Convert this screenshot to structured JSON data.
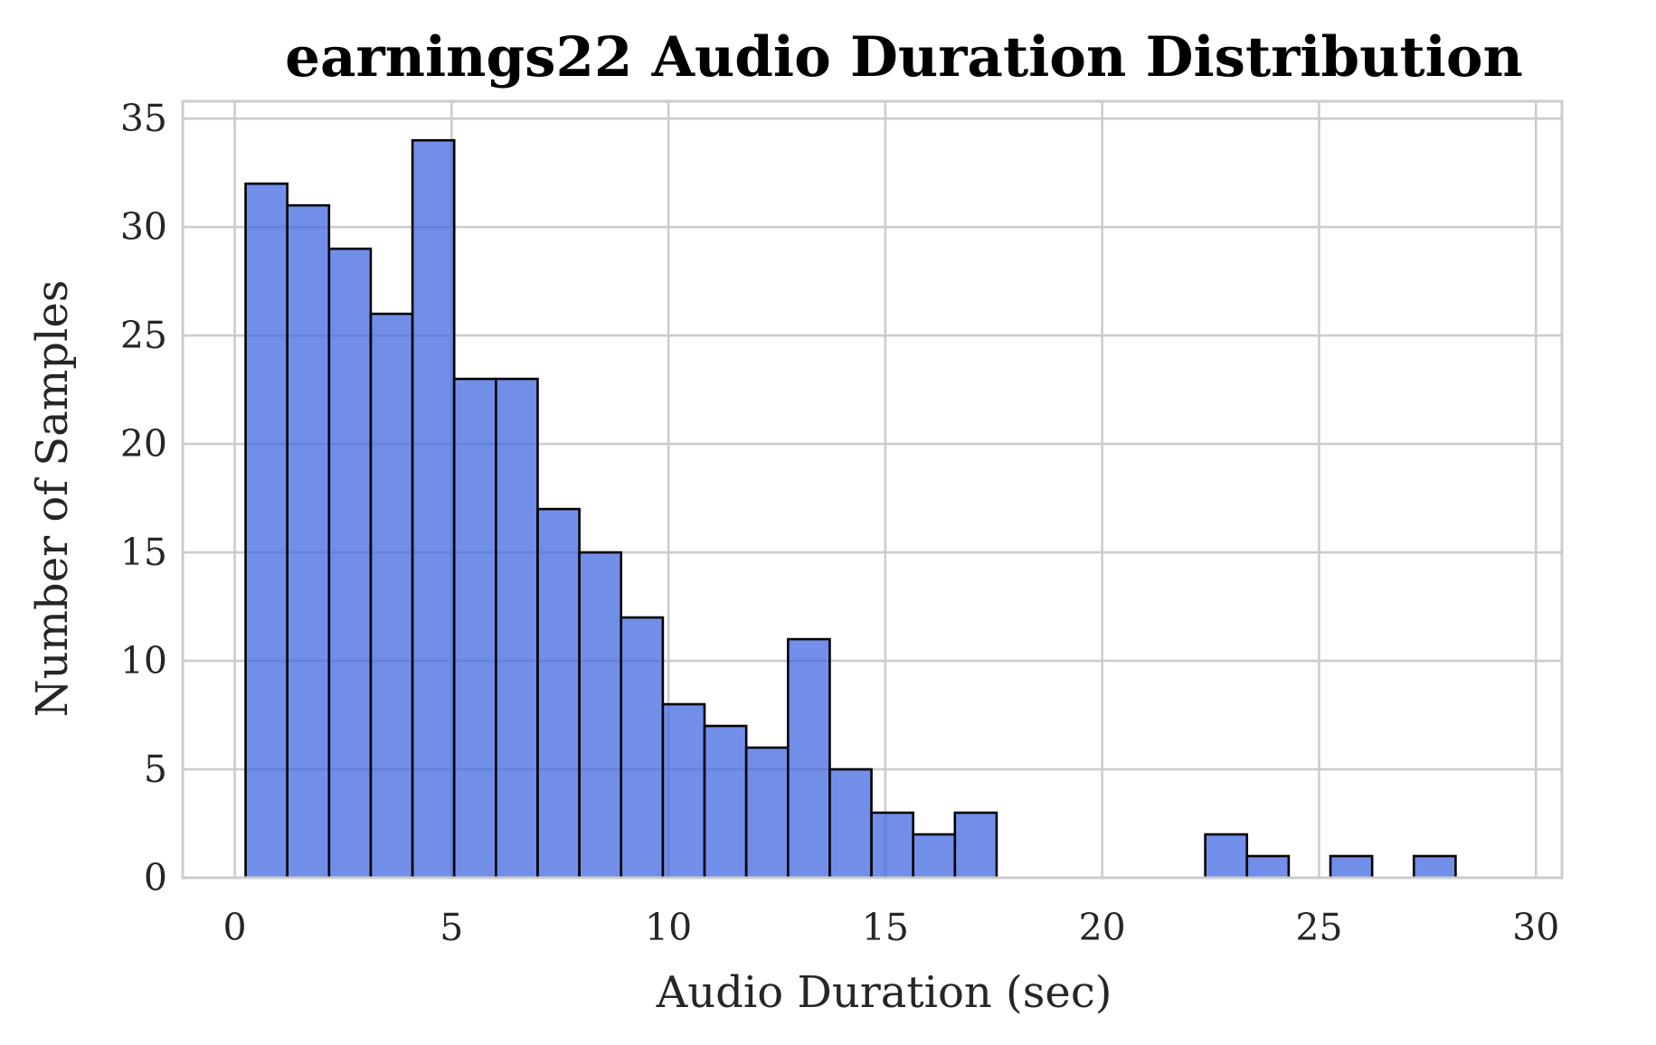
{
  "chart_data": {
    "type": "bar",
    "title": "earnings22 Audio Duration Distribution",
    "xlabel": "Audio Duration (sec)",
    "ylabel": "Number of Samples",
    "xlim": [
      -1.2,
      30.6
    ],
    "ylim": [
      0,
      35.8
    ],
    "xticks": [
      0,
      5,
      10,
      15,
      20,
      25,
      30
    ],
    "yticks": [
      0,
      5,
      10,
      15,
      20,
      25,
      30,
      35
    ],
    "grid": true,
    "bar_color": "#4169e1",
    "bar_opacity": 0.75,
    "edge_color": "#000000",
    "grid_color": "#cccccc",
    "bin_start": 0.25,
    "bin_width": 0.962,
    "values": [
      32,
      31,
      29,
      26,
      34,
      23,
      23,
      17,
      15,
      12,
      8,
      7,
      6,
      11,
      5,
      3,
      2,
      3,
      0,
      0,
      0,
      0,
      0,
      2,
      1,
      0,
      1,
      0,
      1,
      0
    ]
  }
}
